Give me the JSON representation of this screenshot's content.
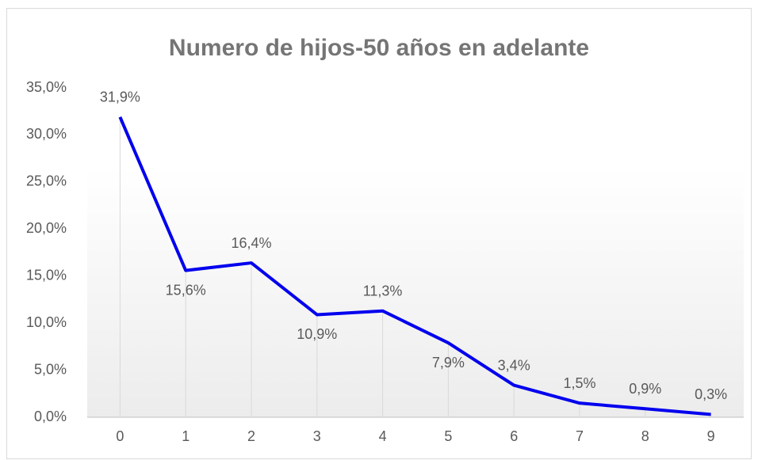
{
  "chart_data": {
    "type": "line",
    "title": "Numero de hijos-50 años en adelante",
    "categories": [
      "0",
      "1",
      "2",
      "3",
      "4",
      "5",
      "6",
      "7",
      "8",
      "9"
    ],
    "series": [
      {
        "name": "Numero de hijos",
        "color": "#0000ee",
        "values": [
          31.9,
          15.6,
          16.4,
          10.9,
          11.3,
          7.9,
          3.4,
          1.5,
          0.9,
          0.3
        ],
        "value_labels": [
          "31,9%",
          "15,6%",
          "16,4%",
          "10,9%",
          "11,3%",
          "7,9%",
          "3,4%",
          "1,5%",
          "0,9%",
          "0,3%"
        ]
      }
    ],
    "ylim": [
      0,
      35
    ],
    "yticks": [
      {
        "value": 0,
        "label": "0,0%"
      },
      {
        "value": 5,
        "label": "5,0%"
      },
      {
        "value": 10,
        "label": "10,0%"
      },
      {
        "value": 15,
        "label": "15,0%"
      },
      {
        "value": 20,
        "label": "20,0%"
      },
      {
        "value": 25,
        "label": "25,0%"
      },
      {
        "value": 30,
        "label": "30,0%"
      },
      {
        "value": 35,
        "label": "35,0%"
      }
    ],
    "grid": false,
    "drop_lines": true
  }
}
